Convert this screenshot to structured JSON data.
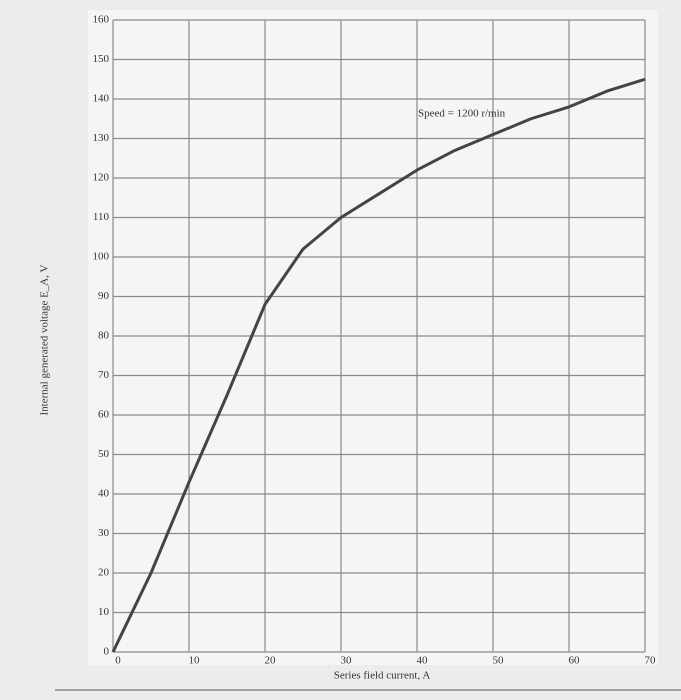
{
  "chart_data": {
    "type": "line",
    "x_label": "Series field current, A",
    "y_label": "Internal generated voltage E_A, V",
    "annotation": "Speed = 1200 r/min",
    "x": [
      0,
      5,
      10,
      15,
      20,
      25,
      30,
      35,
      40,
      45,
      50,
      55,
      60,
      65,
      70
    ],
    "values": [
      0,
      20,
      43,
      65,
      88,
      102,
      110,
      116,
      122,
      127,
      131,
      135,
      138,
      142,
      145
    ],
    "color": "#444444",
    "xlim": [
      0,
      70
    ],
    "xticks": [
      0,
      10,
      20,
      30,
      40,
      50,
      60,
      70
    ],
    "ylim": [
      0,
      160
    ],
    "yticks": [
      0,
      10,
      20,
      30,
      40,
      50,
      60,
      70,
      80,
      90,
      100,
      110,
      120,
      130,
      140,
      150,
      160
    ],
    "grid": true
  }
}
